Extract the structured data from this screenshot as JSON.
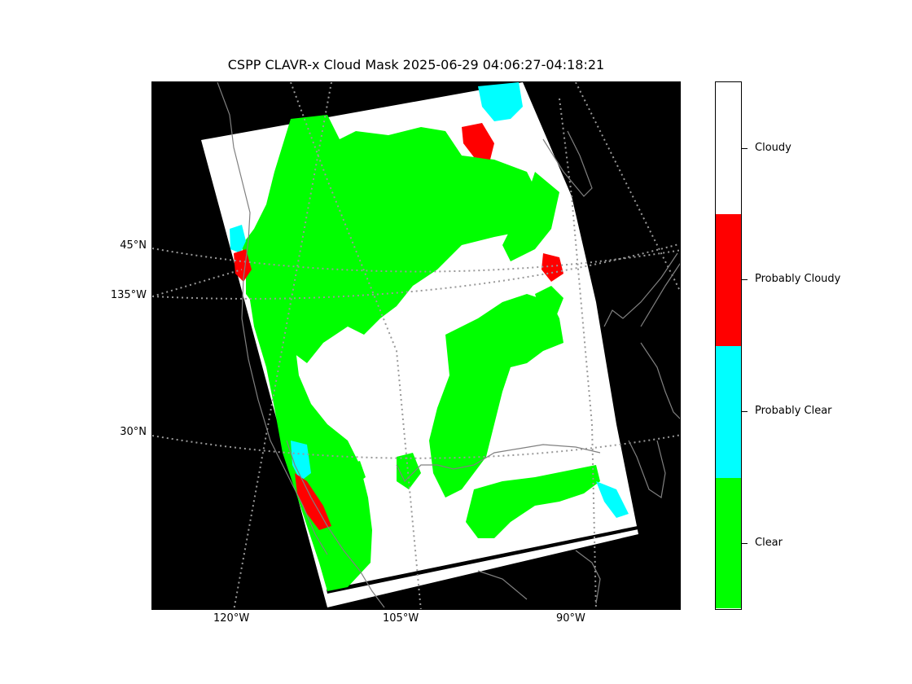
{
  "title": "CSPP CLAVR-x Cloud Mask 2025-06-29 04:06:27-04:18:21",
  "map": {
    "lat_labels": [
      "45°N",
      "135°W",
      "30°N"
    ],
    "lon_labels": [
      "120°W",
      "105°W",
      "90°W"
    ],
    "colors": {
      "background": "#000000",
      "clear": "#00ff00",
      "probably_clear": "#00ffff",
      "probably_cloudy": "#ff0000",
      "cloudy": "#ffffff",
      "coastline": "#808080",
      "graticule": "#999999"
    }
  },
  "colorbar": {
    "categories": [
      {
        "label": "Cloudy",
        "color": "#ffffff"
      },
      {
        "label": "Probably Cloudy",
        "color": "#ff0000"
      },
      {
        "label": "Probably Clear",
        "color": "#00ffff"
      },
      {
        "label": "Clear",
        "color": "#00ff00"
      }
    ]
  }
}
